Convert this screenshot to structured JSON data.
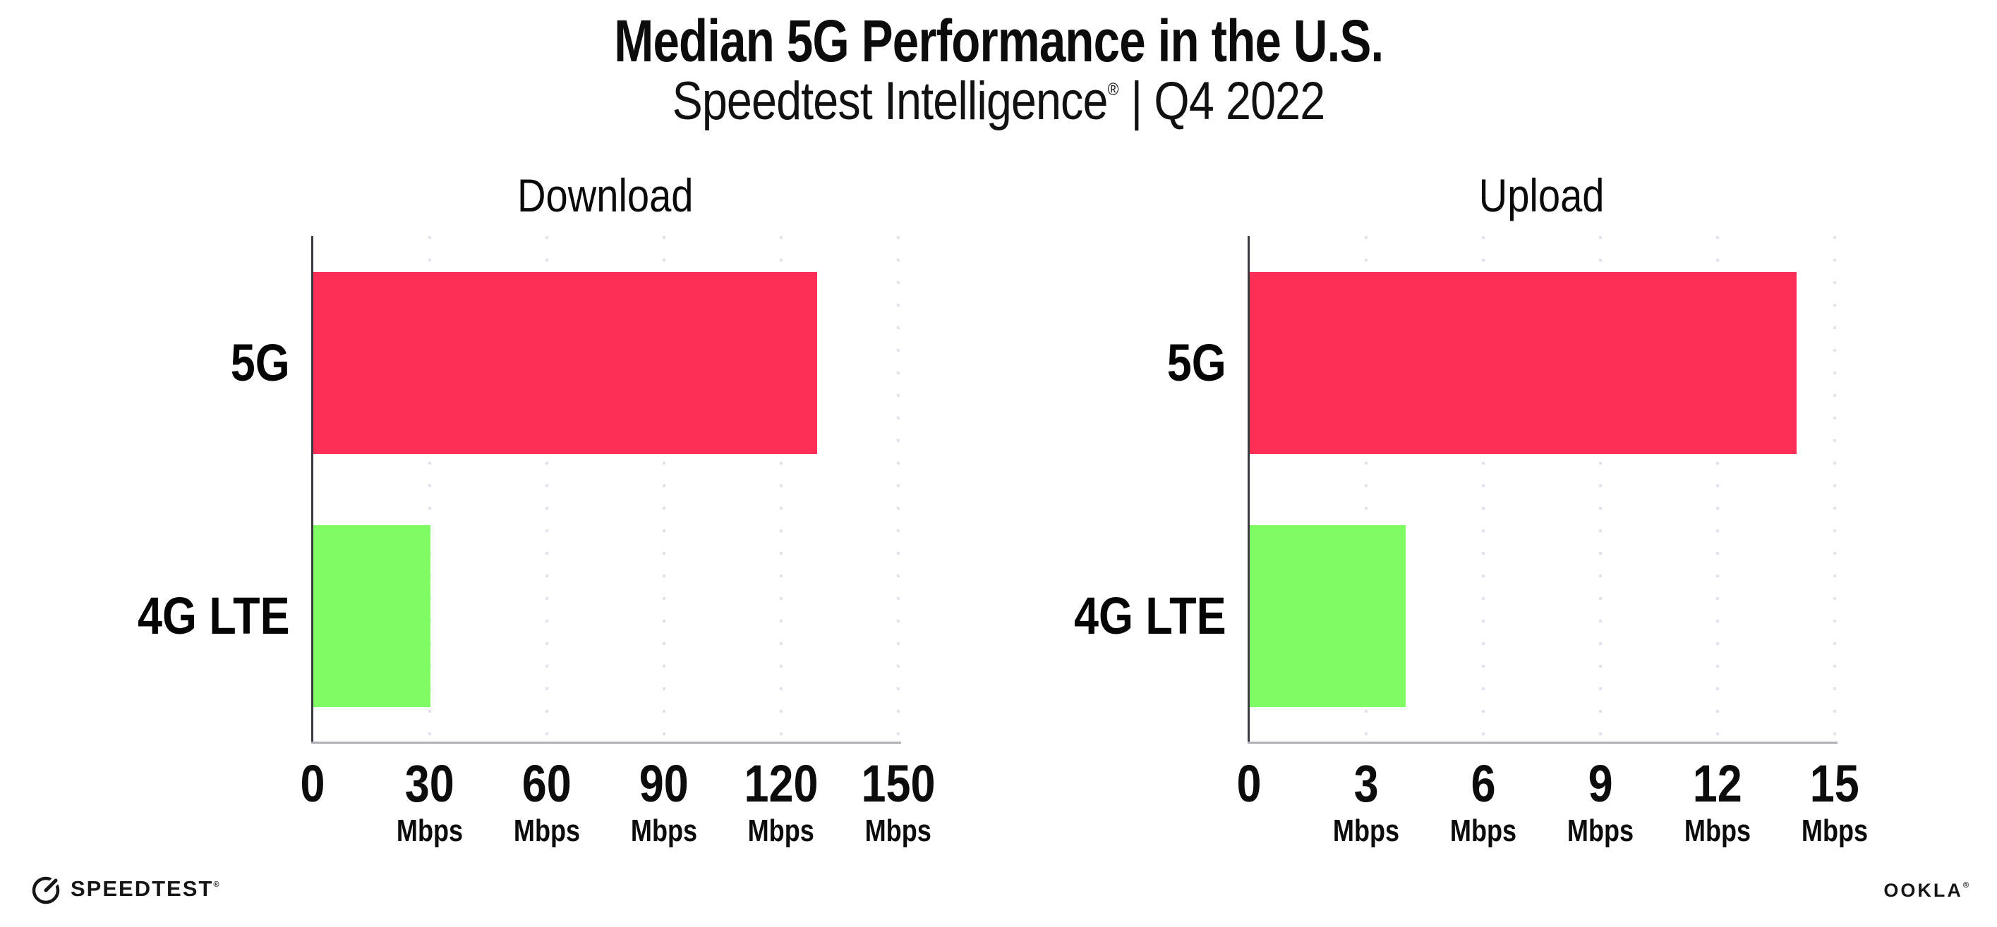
{
  "header": {
    "title": "Median 5G Performance in the U.S.",
    "subtitle_product": "Speedtest Intelligence",
    "subtitle_reg": "®",
    "subtitle_separator": " | ",
    "subtitle_period": "Q4 2022"
  },
  "chart_data": [
    {
      "type": "bar",
      "title": "Download",
      "orientation": "horizontal",
      "categories": [
        "5G",
        "4G LTE"
      ],
      "values": [
        129,
        30
      ],
      "unit": "Mbps",
      "xlim": [
        0,
        150
      ],
      "xticks": [
        0,
        30,
        60,
        90,
        120,
        150
      ],
      "bar_colors": [
        "#ff2e57",
        "#7ffc63"
      ],
      "grid": "vertical-dotted",
      "legend": "none"
    },
    {
      "type": "bar",
      "title": "Upload",
      "orientation": "horizontal",
      "categories": [
        "5G",
        "4G LTE"
      ],
      "values": [
        14,
        4
      ],
      "unit": "Mbps",
      "xlim": [
        0,
        15
      ],
      "xticks": [
        0,
        3,
        6,
        9,
        12,
        15
      ],
      "bar_colors": [
        "#ff2e57",
        "#7ffc63"
      ],
      "grid": "vertical-dotted",
      "legend": "none"
    }
  ],
  "footer": {
    "speedtest_label": "SPEEDTEST",
    "speedtest_reg": "®",
    "speedtest_icon": "speedtest-gauge-icon",
    "ookla_label": "OOKLA",
    "ookla_reg": "®"
  },
  "colors": {
    "background": "#ffffff",
    "text": "#0c0c0c",
    "grid_dot": "#e2e2ee",
    "y_axis": "#3a3a42",
    "x_axis": "#b0b0b8",
    "bar_5g": "#ff2e57",
    "bar_4g_lte": "#7ffc63"
  }
}
